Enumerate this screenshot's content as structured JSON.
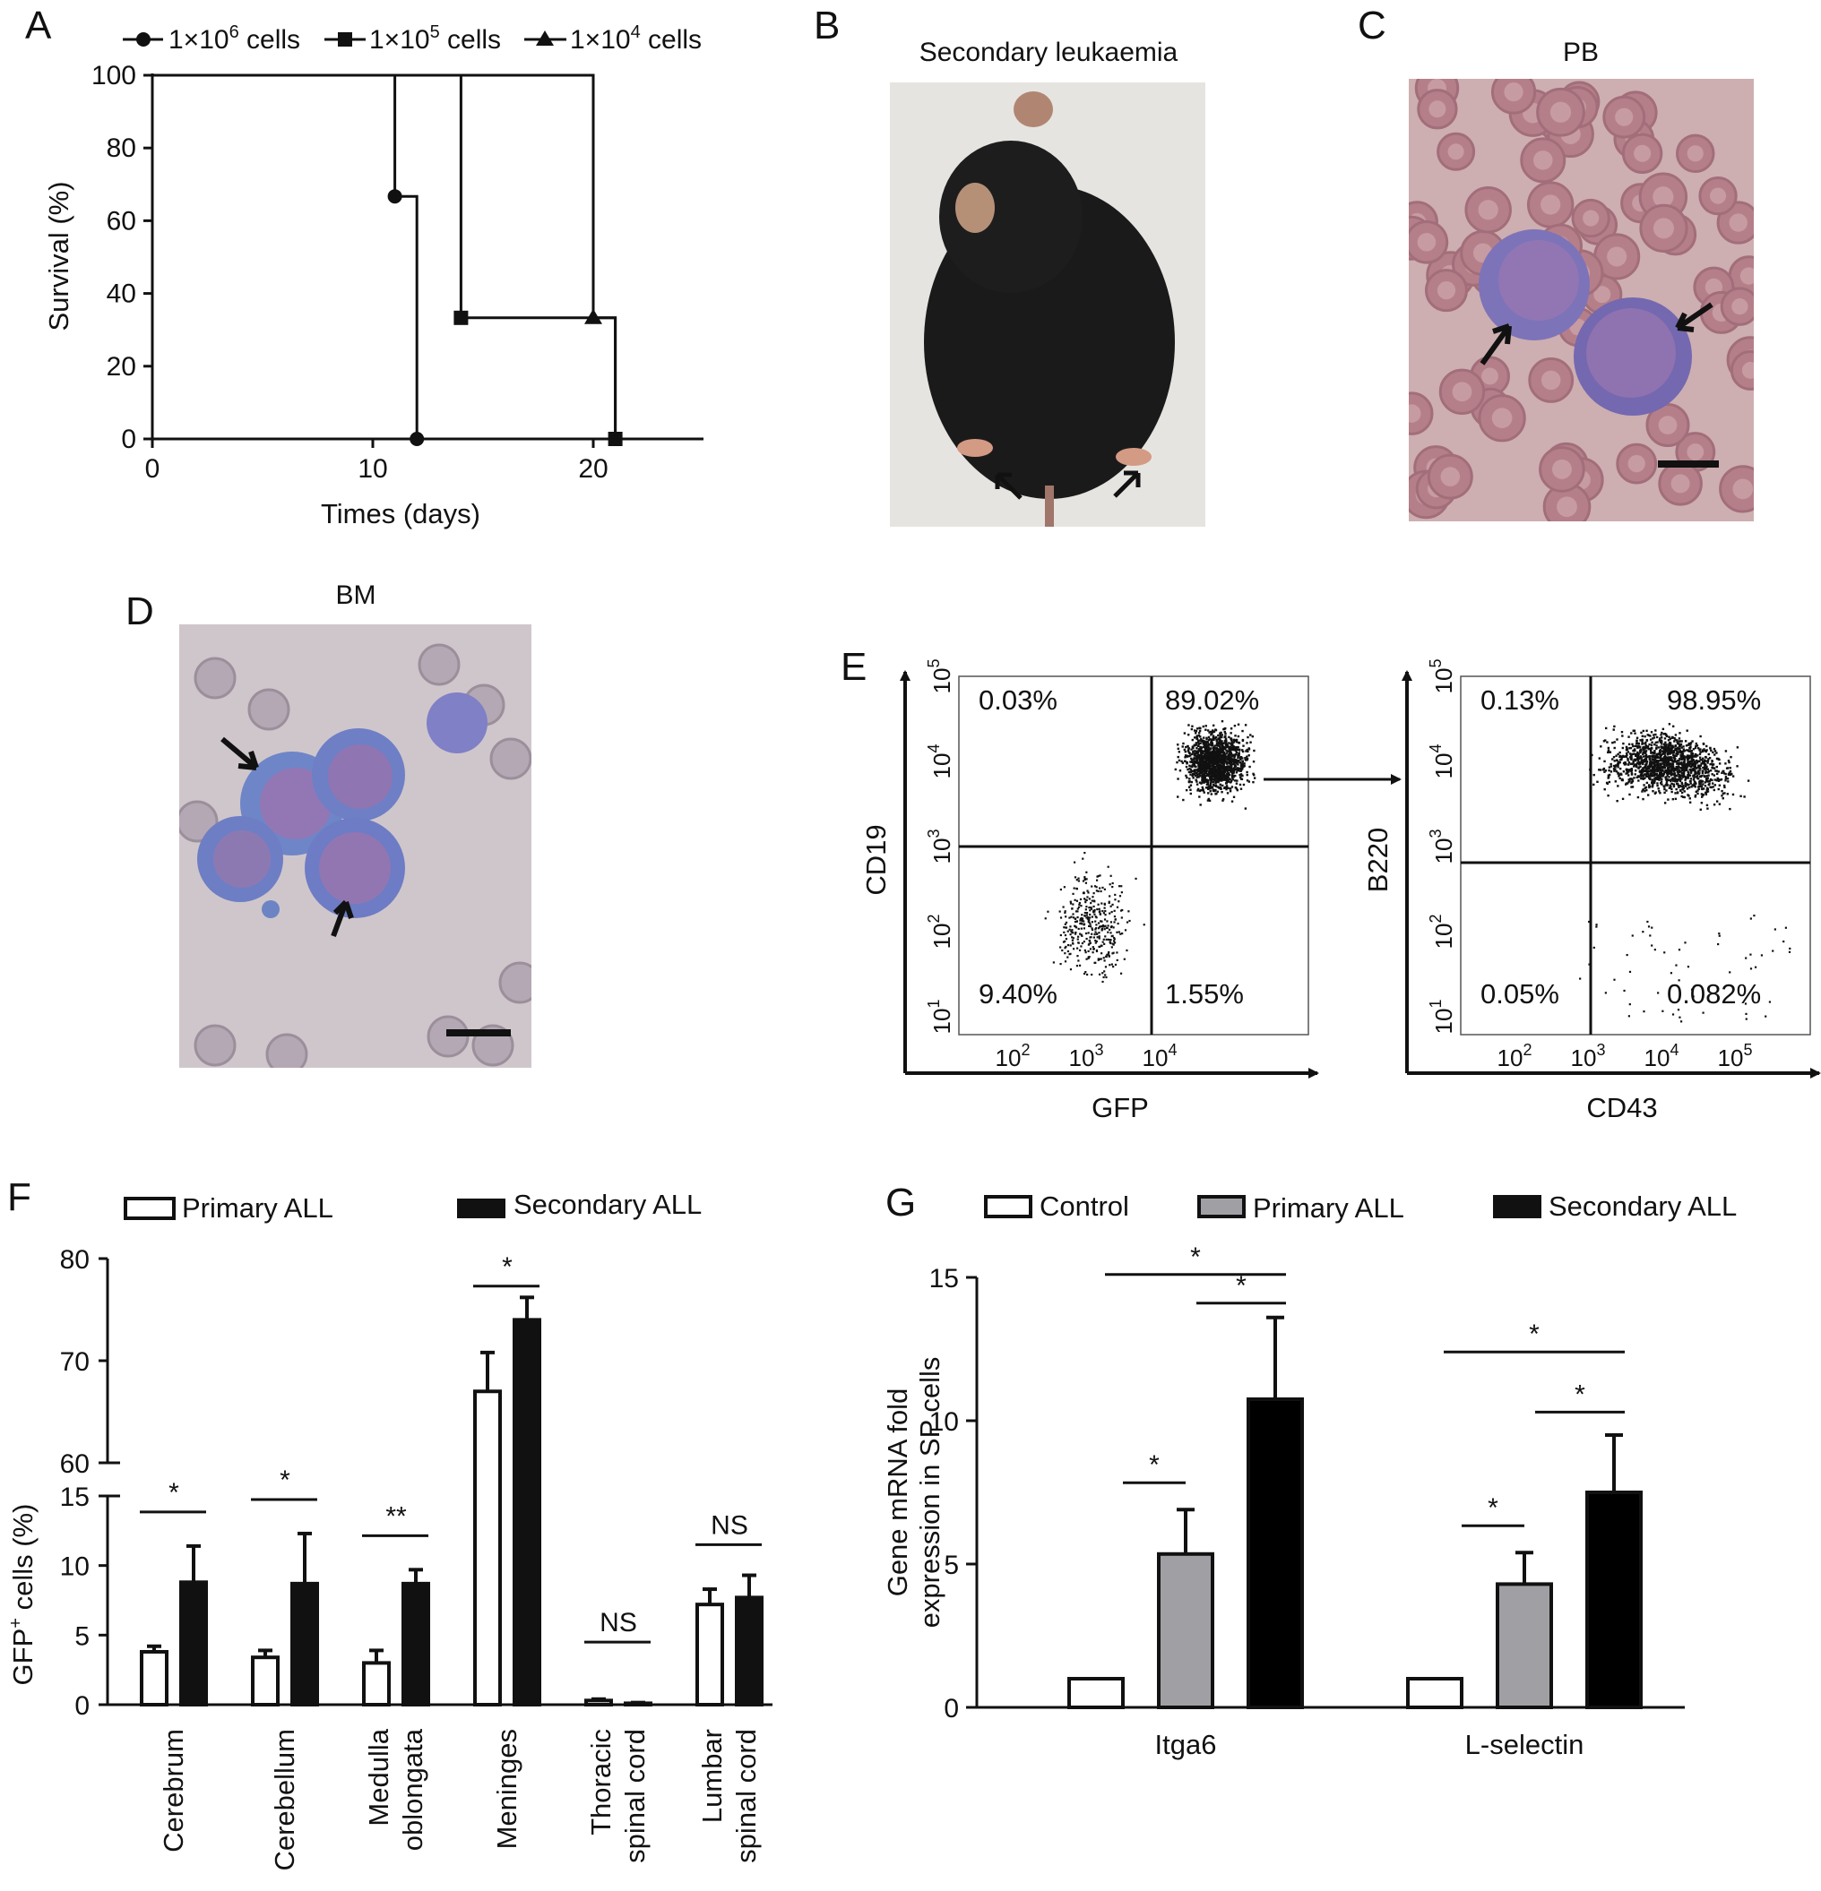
{
  "panels": {
    "A": {
      "letter": "A",
      "legend": [
        {
          "marker": "circle",
          "pre": "1×10",
          "sup": "6",
          "post": " cells"
        },
        {
          "marker": "square",
          "pre": "1×10",
          "sup": "5",
          "post": " cells"
        },
        {
          "marker": "triangle",
          "pre": "1×10",
          "sup": "4",
          "post": " cells"
        }
      ],
      "ylabel": "Survival (%)",
      "xlabel": "Times (days)",
      "yticks": [
        "0",
        "20",
        "40",
        "60",
        "80",
        "100"
      ],
      "xticks": [
        "0",
        "10",
        "20"
      ]
    },
    "B": {
      "letter": "B",
      "title": "Secondary leukaemia"
    },
    "C": {
      "letter": "C",
      "title": "PB"
    },
    "D": {
      "letter": "D",
      "title": "BM"
    },
    "E": {
      "letter": "E",
      "left": {
        "ylabel": "CD19",
        "xlabel": "GFP",
        "q_ul": "0.03%",
        "q_ur": "89.02%",
        "q_ll": "9.40%",
        "q_lr": "1.55%"
      },
      "right": {
        "ylabel": "B220",
        "xlabel": "CD43",
        "q_ul": "0.13%",
        "q_ur": "98.95%",
        "q_ll": "0.05%",
        "q_lr": "0.082%"
      }
    },
    "F": {
      "letter": "F",
      "legend": [
        "Primary ALL",
        "Secondary ALL"
      ],
      "ylabel_pre": "GFP",
      "ylabel_sup": "+",
      "ylabel_post": " cells (%)",
      "yticks_low": [
        "0",
        "5",
        "10",
        "15"
      ],
      "yticks_high": [
        "60",
        "70",
        "80"
      ],
      "categories": [
        [
          "Cerebrum"
        ],
        [
          "Cerebellum"
        ],
        [
          "Medulla",
          "oblongata"
        ],
        [
          "Meninges"
        ],
        [
          "Thoracic",
          "spinal cord"
        ],
        [
          "Lumbar",
          "spinal cord"
        ]
      ],
      "sig": [
        "*",
        "*",
        "**",
        "*",
        "NS",
        "NS"
      ]
    },
    "G": {
      "letter": "G",
      "legend": [
        "Control",
        "Primary ALL",
        "Secondary ALL"
      ],
      "ylabel": [
        "Gene mRNA fold",
        "expression in SP cells"
      ],
      "yticks": [
        "0",
        "5",
        "10",
        "15"
      ],
      "categories": [
        "Itga6",
        "L-selectin"
      ],
      "sig": [
        "*",
        "*",
        "*",
        "*",
        "*",
        "*"
      ]
    }
  },
  "chart_data": [
    {
      "panel": "A",
      "type": "line",
      "subtype": "kaplan-meier",
      "xlabel": "Times (days)",
      "ylabel": "Survival (%)",
      "xlim": [
        0,
        25
      ],
      "ylim": [
        0,
        100
      ],
      "series": [
        {
          "name": "1×10^6 cells",
          "marker": "circle",
          "steps": [
            [
              0,
              100
            ],
            [
              11,
              100
            ],
            [
              11,
              66.7
            ],
            [
              12,
              66.7
            ],
            [
              12,
              0
            ]
          ],
          "points": [
            [
              11,
              66.7
            ],
            [
              12,
              0
            ]
          ]
        },
        {
          "name": "1×10^5 cells",
          "marker": "square",
          "steps": [
            [
              0,
              100
            ],
            [
              14,
              100
            ],
            [
              14,
              33.3
            ],
            [
              21,
              33.3
            ],
            [
              21,
              0
            ]
          ],
          "points": [
            [
              14,
              33.3
            ],
            [
              21,
              0
            ]
          ]
        },
        {
          "name": "1×10^4 cells",
          "marker": "triangle",
          "steps": [
            [
              0,
              100
            ],
            [
              20,
              100
            ],
            [
              20,
              33.3
            ],
            [
              21,
              33.3
            ],
            [
              21,
              0
            ]
          ],
          "points": [
            [
              20,
              33.3
            ]
          ]
        }
      ]
    },
    {
      "panel": "F",
      "type": "bar",
      "ylabel": "GFP+ cells (%)",
      "y_break": [
        15,
        60
      ],
      "ylim": [
        0,
        80
      ],
      "categories": [
        "Cerebrum",
        "Cerebellum",
        "Medulla oblongata",
        "Meninges",
        "Thoracic spinal cord",
        "Lumbar spinal cord"
      ],
      "series": [
        {
          "name": "Primary ALL",
          "color": "#ffffff",
          "values": [
            3.8,
            3.4,
            3.0,
            67.0,
            0.3,
            7.2
          ],
          "errors": [
            0.4,
            0.5,
            0.9,
            3.8,
            0.1,
            1.1
          ]
        },
        {
          "name": "Secondary ALL",
          "color": "#000000",
          "values": [
            8.8,
            8.7,
            8.7,
            74.0,
            0.1,
            7.7
          ],
          "errors": [
            2.6,
            3.6,
            1.0,
            2.2,
            0.05,
            1.6
          ]
        }
      ],
      "significance": [
        "*",
        "*",
        "**",
        "*",
        "NS",
        "NS"
      ]
    },
    {
      "panel": "G",
      "type": "bar",
      "ylabel": "Gene mRNA fold expression in SP cells",
      "ylim": [
        0,
        15
      ],
      "categories": [
        "Itga6",
        "L-selectin"
      ],
      "series": [
        {
          "name": "Control",
          "color": "#ffffff",
          "values": [
            1.0,
            1.0
          ],
          "errors": [
            0,
            0
          ]
        },
        {
          "name": "Primary ALL",
          "color": "#a0a0a4",
          "values": [
            5.35,
            4.3
          ],
          "errors": [
            1.55,
            1.1
          ]
        },
        {
          "name": "Secondary ALL",
          "color": "#000000",
          "values": [
            10.75,
            7.5
          ],
          "errors": [
            2.85,
            2.0
          ]
        }
      ],
      "significance": [
        "*",
        "*",
        "*",
        "*",
        "*",
        "*"
      ]
    },
    {
      "panel": "E",
      "type": "scatter",
      "subtype": "flow-cytometry",
      "plots": [
        {
          "xlabel": "GFP",
          "ylabel": "CD19",
          "scale": "log",
          "quadrants": {
            "upper_left": "0.03%",
            "upper_right": "89.02%",
            "lower_left": "9.40%",
            "lower_right": "1.55%"
          }
        },
        {
          "xlabel": "CD43",
          "ylabel": "B220",
          "scale": "log",
          "quadrants": {
            "upper_left": "0.13%",
            "upper_right": "98.95%",
            "lower_left": "0.05%",
            "lower_right": "0.082%"
          }
        }
      ]
    }
  ]
}
